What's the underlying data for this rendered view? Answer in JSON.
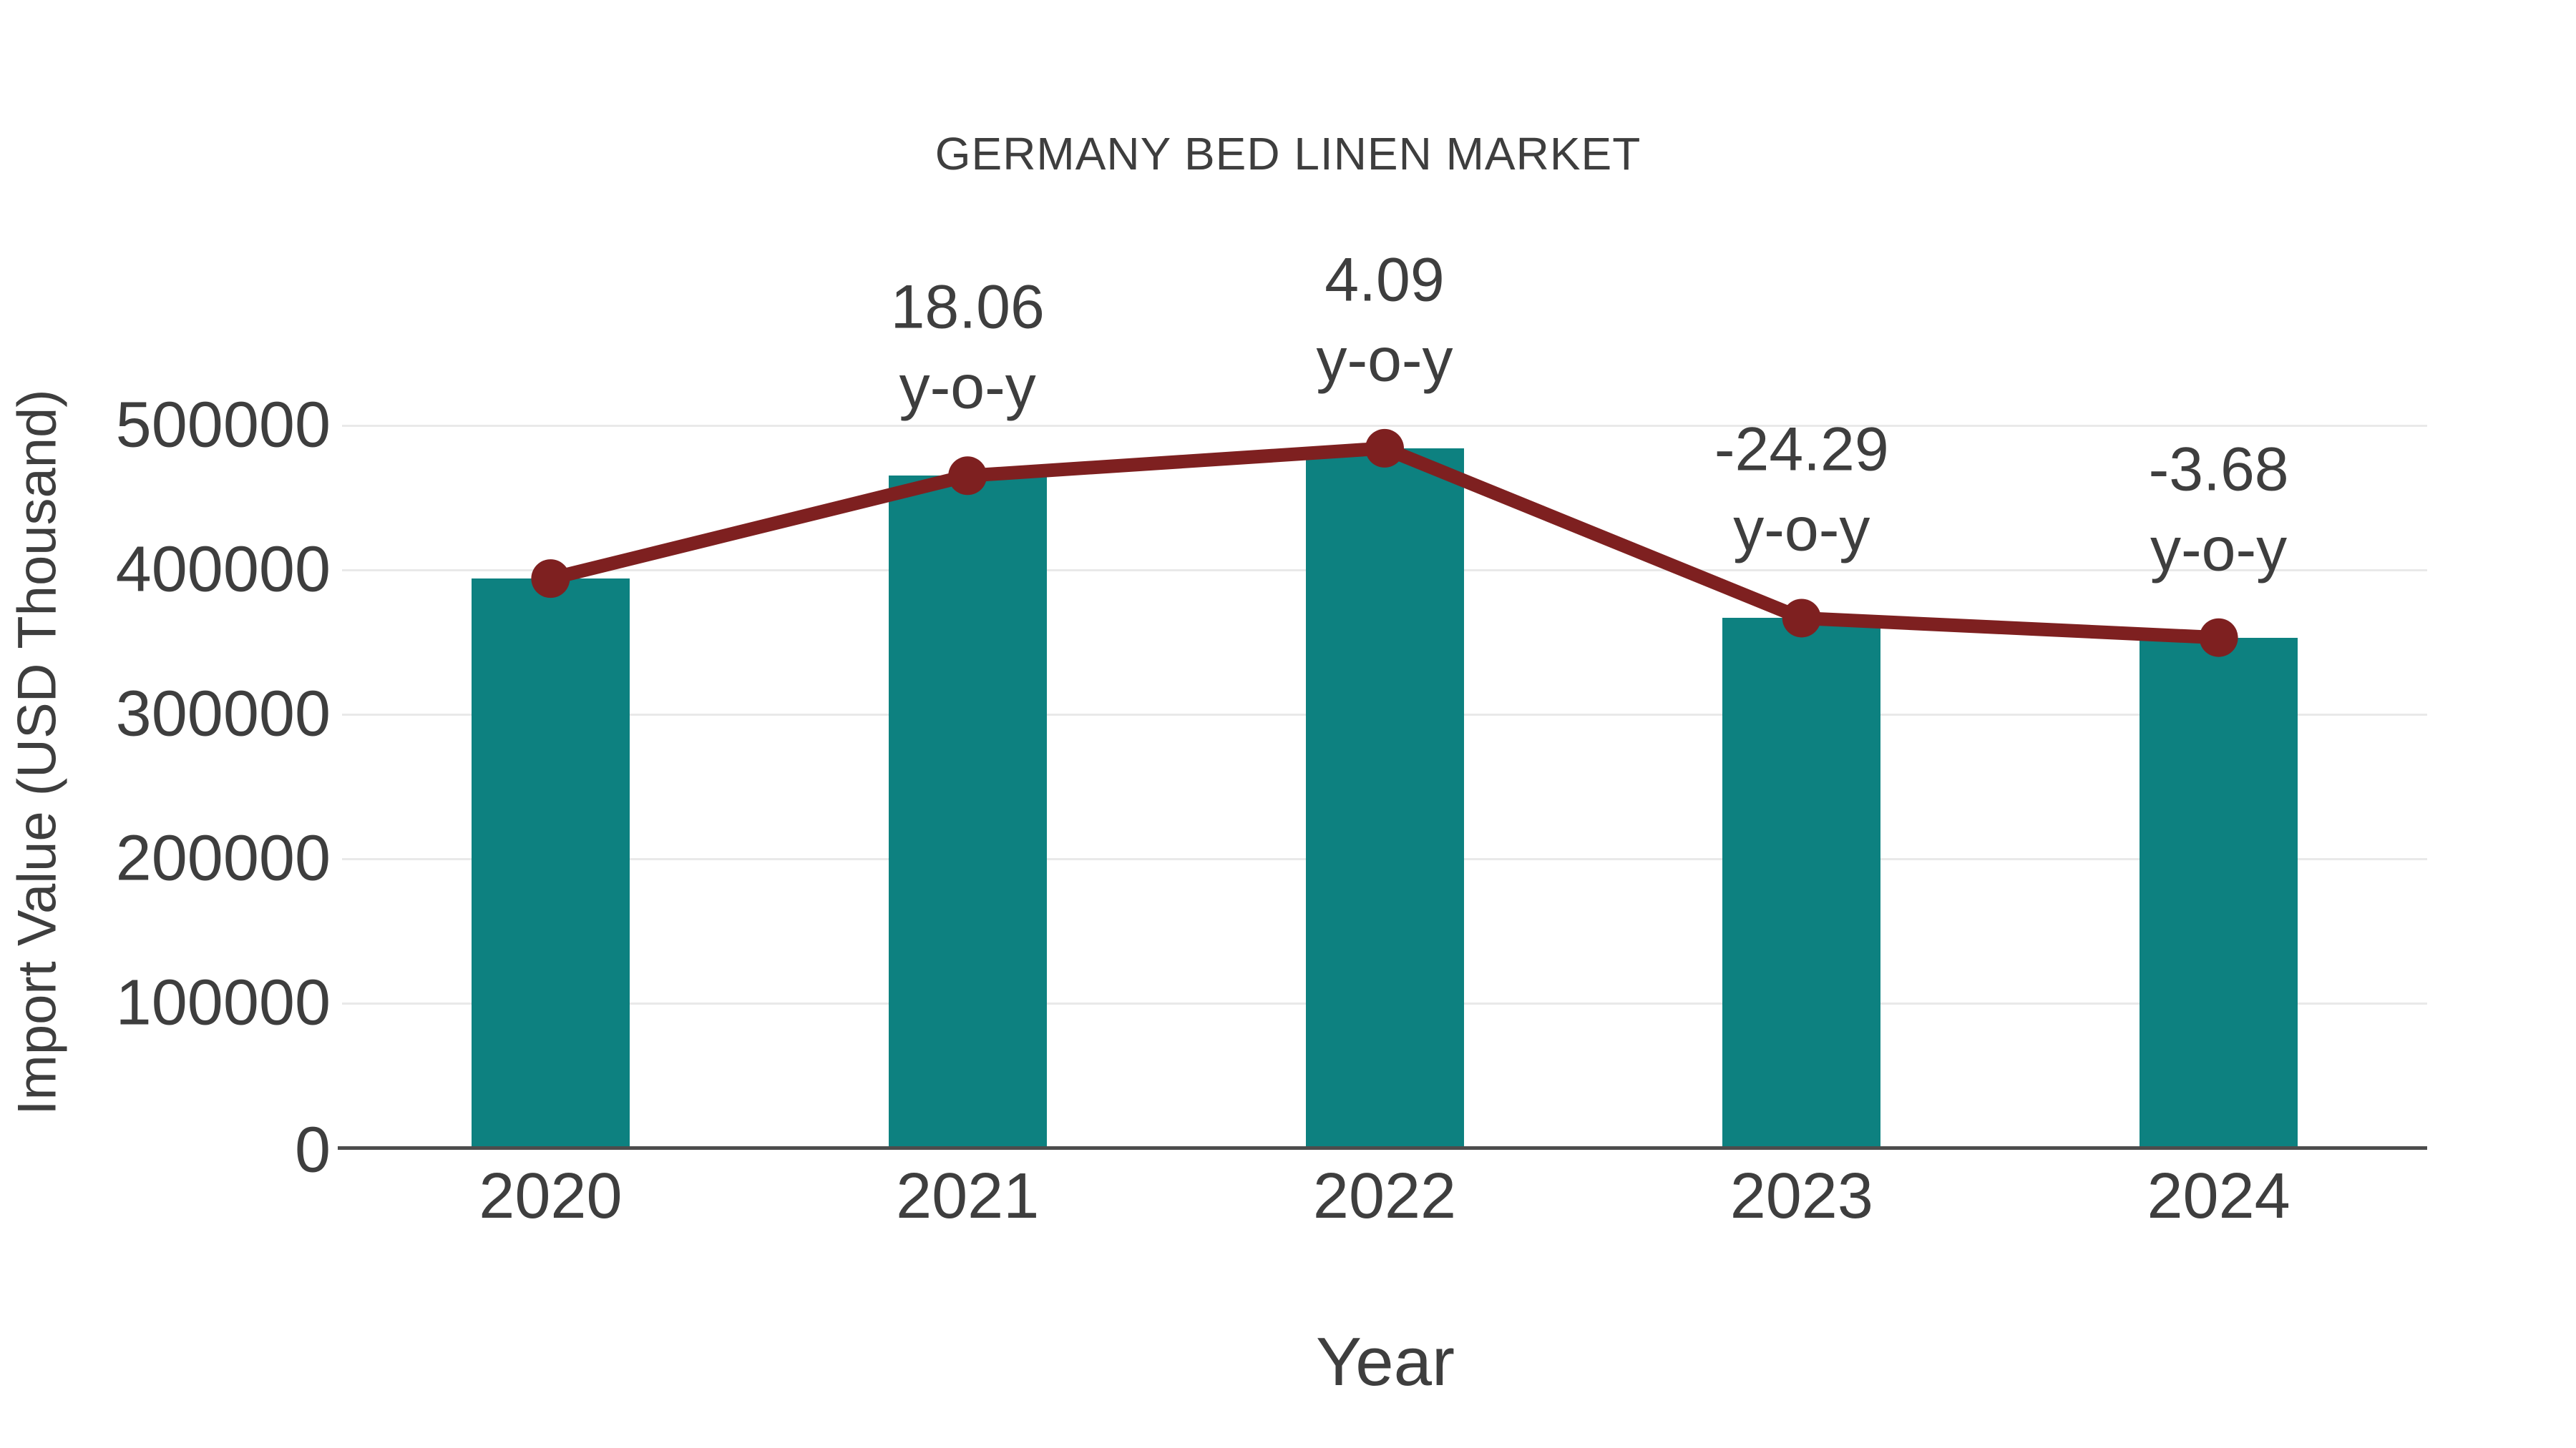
{
  "chart_data": {
    "type": "bar",
    "title": "GERMANY BED LINEN MARKET",
    "xlabel": "Year",
    "ylabel": "Import Value (USD Thousand)",
    "categories": [
      "2020",
      "2021",
      "2022",
      "2023",
      "2024"
    ],
    "series": [
      {
        "name": "Import Value (USD Thousand)",
        "type": "bar",
        "color": "#0d8180",
        "values": [
          394000,
          465200,
          484200,
          366600,
          353100
        ]
      },
      {
        "name": "y-o-y change (%)",
        "type": "line",
        "color": "#7e2020",
        "tracks_bar_tops": true,
        "values": [
          null,
          18.06,
          4.09,
          -24.29,
          -3.68
        ]
      }
    ],
    "annotations": [
      {
        "category": "2021",
        "lines": [
          "18.06",
          "y-o-y"
        ]
      },
      {
        "category": "2022",
        "lines": [
          "4.09",
          "y-o-y"
        ]
      },
      {
        "category": "2023",
        "lines": [
          "-24.29",
          "y-o-y"
        ]
      },
      {
        "category": "2024",
        "lines": [
          "-3.68",
          "y-o-y"
        ]
      }
    ],
    "y_ticks": [
      0,
      100000,
      200000,
      300000,
      400000,
      500000
    ],
    "ylim": [
      0,
      500000
    ],
    "grid": "horizontal",
    "legend": "none",
    "colors": {
      "bar": "#0d8180",
      "line": "#7e2020",
      "text": "#3e3e3e",
      "gridline": "#e9e9e9",
      "axis_line": "#4d4d4d",
      "background": "#ffffff"
    }
  }
}
